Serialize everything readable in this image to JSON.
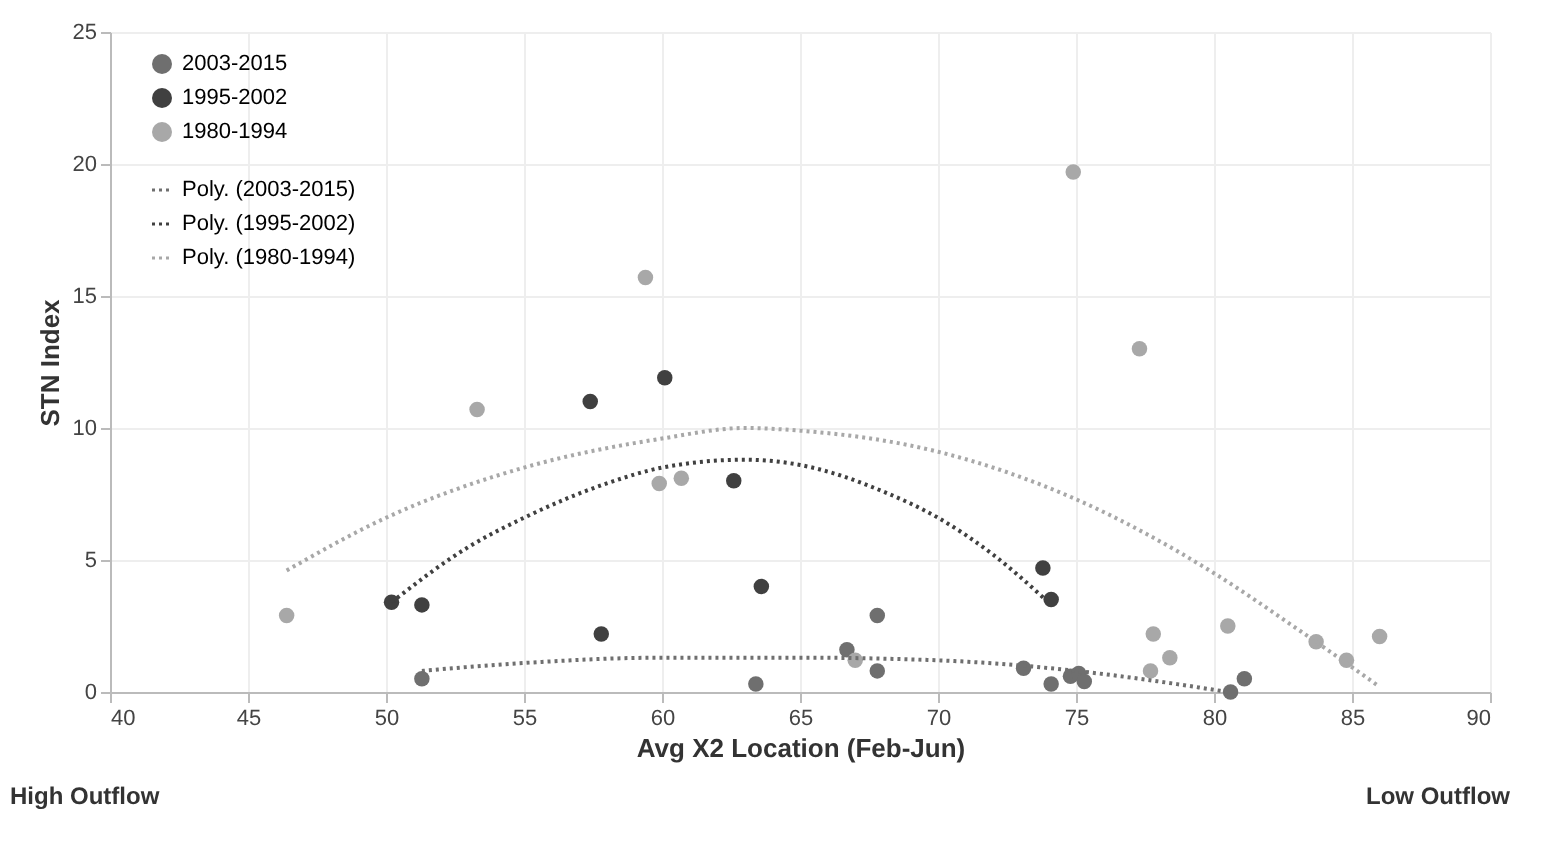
{
  "chart_data": {
    "type": "scatter",
    "xlabel": "Avg X2 Location (Feb-Jun)",
    "ylabel": "STN Index",
    "xlim": [
      40,
      90
    ],
    "xticks": [
      40,
      45,
      50,
      55,
      60,
      65,
      70,
      75,
      80,
      85,
      90
    ],
    "ylim": [
      0,
      25
    ],
    "yticks": [
      0,
      5,
      10,
      15,
      20,
      25
    ],
    "grid": true,
    "legend": "top left",
    "annotations": [
      "High Outflow",
      "Low Outflow"
    ],
    "series": [
      {
        "name": "2003-2015",
        "color": "#6f6f6f",
        "marker": "circle",
        "x": [
          51.3,
          63.4,
          66.7,
          67.8,
          73.1,
          74.1,
          74.8,
          75.1,
          75.3,
          80.6,
          81.1,
          67.8
        ],
        "values": [
          0.5,
          0.3,
          1.6,
          0.8,
          0.9,
          0.3,
          0.6,
          0.7,
          0.4,
          0,
          0.5,
          2.9
        ]
      },
      {
        "name": "1995-2002",
        "color": "#404040",
        "marker": "circle",
        "x": [
          50.2,
          51.3,
          57.4,
          60.1,
          62.6,
          63.6,
          73.8,
          74.1,
          57.8
        ],
        "values": [
          3.4,
          3.3,
          11,
          11.9,
          8,
          4,
          4.7,
          3.5,
          2.2
        ]
      },
      {
        "name": "1980-1994",
        "color": "#a8a8a8",
        "marker": "circle",
        "x": [
          46.4,
          53.3,
          59.4,
          59.9,
          60.7,
          67.0,
          74.9,
          77.3,
          77.8,
          77.7,
          78.4,
          80.5,
          83.7,
          84.8,
          86.0
        ],
        "values": [
          2.9,
          10.7,
          15.7,
          7.9,
          8.1,
          1.2,
          19.7,
          13,
          2.2,
          0.8,
          1.3,
          2.5,
          1.9,
          1.2,
          2.1
        ]
      },
      {
        "name": "Poly. (2003-2015)",
        "color": "#6f6f6f",
        "type": "line",
        "line_style": "dotted",
        "marker": "none",
        "x": [
          51.3,
          55,
          60,
          65,
          70,
          75,
          78,
          80.5
        ],
        "values": [
          0.8,
          1.1,
          1.3,
          1.3,
          1.2,
          0.8,
          0.4,
          0
        ]
      },
      {
        "name": "Poly. (1995-2002)",
        "color": "#404040",
        "type": "line",
        "line_style": "dotted",
        "marker": "none",
        "x": [
          50.2,
          53,
          55,
          58,
          60,
          63,
          65,
          68,
          70,
          72,
          74
        ],
        "values": [
          3.4,
          5.5,
          6.6,
          7.9,
          8.5,
          8.8,
          8.6,
          7.6,
          6.6,
          5.2,
          3.4
        ]
      },
      {
        "name": "Poly. (1980-1994)",
        "color": "#a8a8a8",
        "type": "line",
        "line_style": "dotted",
        "marker": "none",
        "x": [
          46.4,
          50,
          55,
          60,
          63,
          65,
          70,
          75,
          80,
          83,
          86
        ],
        "values": [
          4.6,
          6.6,
          8.5,
          9.6,
          10,
          9.9,
          9.1,
          7.3,
          4.5,
          2.4,
          0.2
        ]
      }
    ]
  }
}
